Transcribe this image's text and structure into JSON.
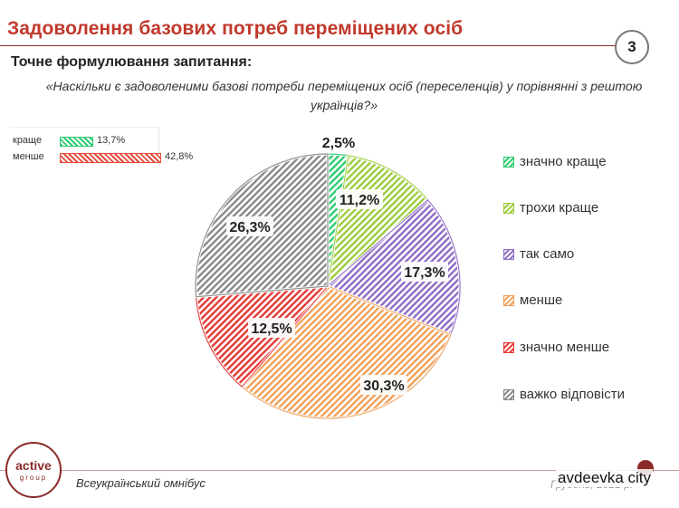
{
  "header": {
    "title": "Задоволення базових потреб переміщених осіб",
    "page_number": "3"
  },
  "intro": {
    "subtitle": "Точне формулювання запитання:",
    "question": "«Наскільки є задоволеними базові потреби переміщених осіб (переселенців) у порівнянні з рештою українців?»"
  },
  "summary": [
    {
      "label": "краще",
      "value": 13.7,
      "value_label": "13,7%",
      "color": "#2ecc71"
    },
    {
      "label": "менше",
      "value": 42.8,
      "value_label": "42,8%",
      "color": "#e74c3c"
    }
  ],
  "chart_data": {
    "type": "pie",
    "start_angle_deg": 0,
    "direction": "clockwise",
    "slice_style": "hatched",
    "slices": [
      {
        "label": "значно краще",
        "value": 2.5,
        "value_label": "2,5%",
        "color": "#2ecc71"
      },
      {
        "label": "трохи краще",
        "value": 11.2,
        "value_label": "11,2%",
        "color": "#9ccc3d"
      },
      {
        "label": "так само",
        "value": 17.3,
        "value_label": "17,3%",
        "color": "#8e6cc4"
      },
      {
        "label": "менше",
        "value": 30.3,
        "value_label": "30,3%",
        "color": "#f0a05a"
      },
      {
        "label": "значно менше",
        "value": 12.5,
        "value_label": "12,5%",
        "color": "#e53935"
      },
      {
        "label": "важко відповісти",
        "value": 26.3,
        "value_label": "26,3%",
        "color": "#888888"
      }
    ],
    "legend_position": "right"
  },
  "footer": {
    "logo_main": "active",
    "logo_sub": "group",
    "omnibus": "Всеукраїнський омнібус",
    "date": "Грудень, 2021 р.",
    "watermark": "avdeevka city"
  }
}
